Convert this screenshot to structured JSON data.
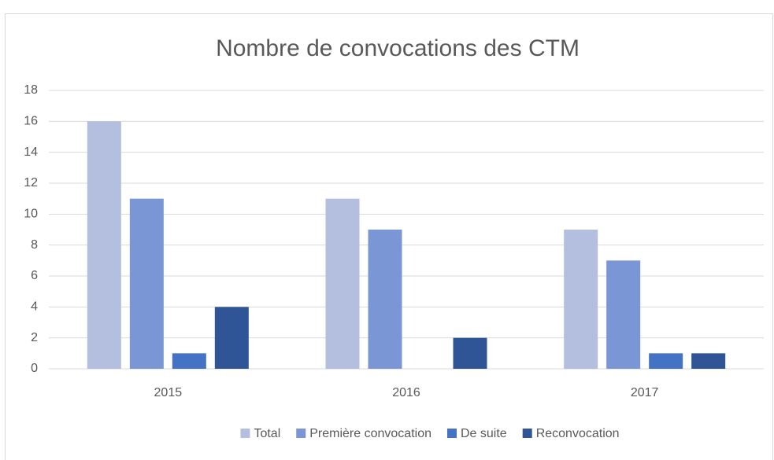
{
  "chart_data": {
    "type": "bar",
    "title": "Nombre de convocations des CTM",
    "categories": [
      "2015",
      "2016",
      "2017"
    ],
    "series": [
      {
        "name": "Total",
        "color": "#b4bfe0",
        "values": [
          16,
          11,
          9
        ]
      },
      {
        "name": "Première convocation",
        "color": "#7b96d4",
        "values": [
          11,
          9,
          7
        ]
      },
      {
        "name": "De suite",
        "color": "#4472c4",
        "values": [
          1,
          0,
          1
        ]
      },
      {
        "name": "Reconvocation",
        "color": "#2f5597",
        "values": [
          4,
          2,
          1
        ]
      }
    ],
    "ylim": [
      0,
      18
    ],
    "yticks": [
      0,
      2,
      4,
      6,
      8,
      10,
      12,
      14,
      16,
      18
    ],
    "grid": true,
    "legend": "bottom"
  }
}
